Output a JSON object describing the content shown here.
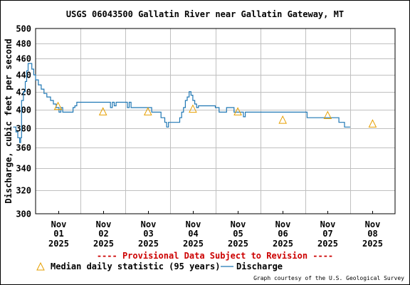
{
  "chart_data": {
    "type": "line",
    "title": "USGS 06043500 Gallatin River near Gallatin Gateway, MT",
    "ylabel": "Discharge, cubic feet per second",
    "xlabel": "",
    "ylim": [
      300,
      500
    ],
    "yscale": "log",
    "y_ticks": [
      300,
      320,
      340,
      360,
      380,
      400,
      420,
      440,
      460,
      480,
      500
    ],
    "x_ticks": [
      {
        "month": "Nov",
        "day": "01",
        "year": "2025"
      },
      {
        "month": "Nov",
        "day": "02",
        "year": "2025"
      },
      {
        "month": "Nov",
        "day": "03",
        "year": "2025"
      },
      {
        "month": "Nov",
        "day": "04",
        "year": "2025"
      },
      {
        "month": "Nov",
        "day": "05",
        "year": "2025"
      },
      {
        "month": "Nov",
        "day": "06",
        "year": "2025"
      },
      {
        "month": "Nov",
        "day": "07",
        "year": "2025"
      },
      {
        "month": "Nov",
        "day": "08",
        "year": "2025"
      }
    ],
    "grid": true,
    "series": [
      {
        "name": "Discharge",
        "color": "#1f77b4",
        "style": "step-line",
        "points": [
          [
            "2025-10-31 00:00",
            381
          ],
          [
            "2025-10-31 01:30",
            376
          ],
          [
            "2025-10-31 02:30",
            370
          ],
          [
            "2025-10-31 03:30",
            365
          ],
          [
            "2025-10-31 04:00",
            370
          ],
          [
            "2025-10-31 04:30",
            410
          ],
          [
            "2025-10-31 05:30",
            420
          ],
          [
            "2025-10-31 06:30",
            432
          ],
          [
            "2025-10-31 07:15",
            445
          ],
          [
            "2025-10-31 08:00",
            454
          ],
          [
            "2025-10-31 09:00",
            454
          ],
          [
            "2025-10-31 10:00",
            447
          ],
          [
            "2025-10-31 11:00",
            440
          ],
          [
            "2025-10-31 12:00",
            434
          ],
          [
            "2025-10-31 13:30",
            428
          ],
          [
            "2025-10-31 15:00",
            423
          ],
          [
            "2025-10-31 16:30",
            418
          ],
          [
            "2025-10-31 18:00",
            414
          ],
          [
            "2025-10-31 20:00",
            410
          ],
          [
            "2025-10-31 21:30",
            406
          ],
          [
            "2025-10-31 23:00",
            402
          ],
          [
            "2025-11-01 00:30",
            397
          ],
          [
            "2025-11-01 01:30",
            402
          ],
          [
            "2025-11-01 02:30",
            397
          ],
          [
            "2025-11-01 07:00",
            397
          ],
          [
            "2025-11-01 08:00",
            402
          ],
          [
            "2025-11-01 09:00",
            404
          ],
          [
            "2025-11-01 10:00",
            408
          ],
          [
            "2025-11-02 03:00",
            408
          ],
          [
            "2025-11-02 04:00",
            402
          ],
          [
            "2025-11-02 05:00",
            408
          ],
          [
            "2025-11-02 06:00",
            404
          ],
          [
            "2025-11-02 07:00",
            408
          ],
          [
            "2025-11-02 12:00",
            408
          ],
          [
            "2025-11-02 13:00",
            402
          ],
          [
            "2025-11-02 14:00",
            408
          ],
          [
            "2025-11-02 15:00",
            402
          ],
          [
            "2025-11-03 01:00",
            402
          ],
          [
            "2025-11-03 02:00",
            397
          ],
          [
            "2025-11-03 06:00",
            397
          ],
          [
            "2025-11-03 07:00",
            391
          ],
          [
            "2025-11-03 09:00",
            386
          ],
          [
            "2025-11-03 10:00",
            381
          ],
          [
            "2025-11-03 11:00",
            386
          ],
          [
            "2025-11-03 16:00",
            386
          ],
          [
            "2025-11-03 17:00",
            391
          ],
          [
            "2025-11-03 18:00",
            397
          ],
          [
            "2025-11-03 19:00",
            402
          ],
          [
            "2025-11-03 20:00",
            410
          ],
          [
            "2025-11-03 21:00",
            414
          ],
          [
            "2025-11-03 22:00",
            420
          ],
          [
            "2025-11-03 23:00",
            416
          ],
          [
            "2025-11-04 00:00",
            410
          ],
          [
            "2025-11-04 01:00",
            406
          ],
          [
            "2025-11-04 02:00",
            402
          ],
          [
            "2025-11-04 03:00",
            404
          ],
          [
            "2025-11-04 11:00",
            404
          ],
          [
            "2025-11-04 12:00",
            402
          ],
          [
            "2025-11-04 14:00",
            397
          ],
          [
            "2025-11-04 17:00",
            397
          ],
          [
            "2025-11-04 18:00",
            402
          ],
          [
            "2025-11-04 21:00",
            402
          ],
          [
            "2025-11-04 22:00",
            397
          ],
          [
            "2025-11-05 02:00",
            397
          ],
          [
            "2025-11-05 03:00",
            392
          ],
          [
            "2025-11-05 04:00",
            397
          ],
          [
            "2025-11-05 07:00",
            397
          ],
          [
            "2025-11-06 12:00",
            397
          ],
          [
            "2025-11-06 13:00",
            391
          ],
          [
            "2025-11-07 05:00",
            391
          ],
          [
            "2025-11-07 06:00",
            386
          ],
          [
            "2025-11-07 08:00",
            386
          ],
          [
            "2025-11-07 09:00",
            381
          ],
          [
            "2025-11-07 12:00",
            381
          ]
        ]
      },
      {
        "name": "Median daily statistic (95 years)",
        "color": "#e69f00",
        "style": "triangle-marker",
        "points": [
          [
            "2025-11-01 00:00",
            403
          ],
          [
            "2025-11-02 00:00",
            397
          ],
          [
            "2025-11-03 00:00",
            397
          ],
          [
            "2025-11-04 00:00",
            400
          ],
          [
            "2025-11-05 00:00",
            397
          ],
          [
            "2025-11-06 00:00",
            388
          ],
          [
            "2025-11-07 00:00",
            393
          ],
          [
            "2025-11-08 00:00",
            384
          ]
        ]
      }
    ],
    "legend_placement": "bottom",
    "provisional_note": "---- Provisional Data Subject to Revision ----",
    "credit": "Graph courtesy of the U.S. Geological Survey",
    "provisional_color": "#cc0000",
    "grid_color": "#c0c0c0"
  }
}
